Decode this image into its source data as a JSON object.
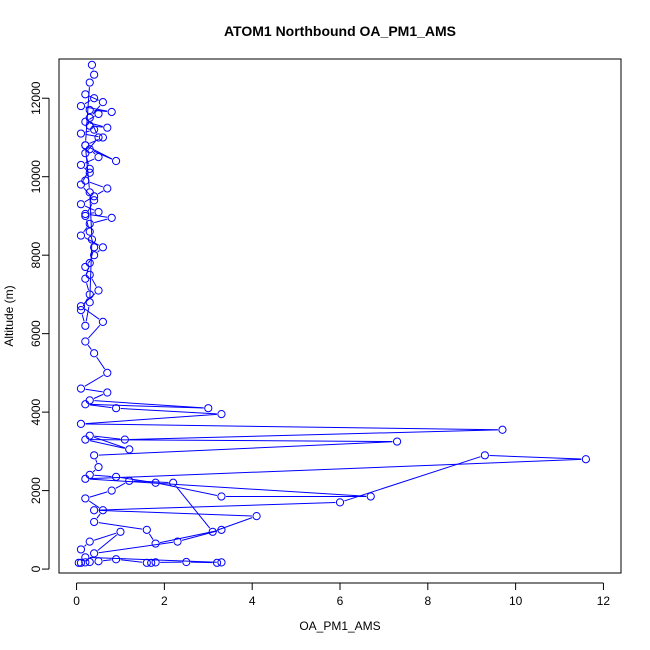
{
  "chart_data": {
    "type": "scatter",
    "title": "ATOM1 Northbound OA_PM1_AMS",
    "xlabel": "OA_PM1_AMS",
    "ylabel": "Altitude (m)",
    "xlim": [
      -0.4,
      12.4
    ],
    "ylim": [
      -100,
      13000
    ],
    "x_ticks": [
      0,
      2,
      4,
      6,
      8,
      10,
      12
    ],
    "y_ticks": [
      0,
      2000,
      4000,
      6000,
      8000,
      10000,
      12000
    ],
    "grid": false,
    "marker": "open-circle",
    "line": true,
    "color": "#0000ff",
    "series": [
      {
        "name": "",
        "x": [
          0.05,
          0.1,
          0.2,
          0.3,
          0.5,
          0.9,
          1.6,
          1.7,
          1.8,
          2.5,
          3.2,
          3.3,
          0.2,
          0.1,
          0.3,
          1.0,
          0.4,
          2.3,
          3.3,
          1.8,
          1.6,
          0.4,
          0.6,
          0.2,
          0.8,
          1.2,
          2.2,
          3.1,
          4.1,
          0.4,
          6.0,
          9.3,
          11.6,
          0.2,
          6.7,
          3.3,
          1.8,
          0.9,
          0.3,
          0.5,
          0.4,
          7.3,
          0.2,
          1.2,
          0.3,
          1.1,
          9.7,
          0.1,
          3.3,
          0.9,
          0.2,
          3.0,
          0.3,
          0.7,
          0.1,
          0.7,
          0.4,
          0.2,
          0.6,
          0.1,
          0.5,
          0.3,
          0.2,
          0.4,
          0.6,
          0.1,
          0.3,
          0.8,
          0.2,
          0.5,
          0.1,
          0.4,
          0.7,
          0.2,
          0.3,
          0.1,
          0.5,
          0.3,
          0.9,
          0.2,
          0.6,
          0.1,
          0.4,
          0.3,
          0.7,
          0.2,
          0.5,
          0.3,
          0.8,
          0.1,
          0.4,
          0.2,
          0.6,
          0.3,
          0.5,
          0.2,
          0.3,
          0.1,
          0.4,
          0.2,
          0.3,
          0.4,
          0.3,
          0.2,
          0.3,
          0.1,
          0.2,
          0.3,
          0.35,
          0.3,
          0.2,
          0.3,
          0.4,
          0.35
        ],
        "y": [
          160,
          160,
          170,
          180,
          200,
          250,
          160,
          160,
          170,
          180,
          160,
          170,
          300,
          500,
          700,
          950,
          400,
          700,
          1000,
          650,
          1000,
          1200,
          1500,
          1800,
          2000,
          2250,
          2200,
          950,
          1350,
          1500,
          1700,
          2900,
          2800,
          2300,
          1850,
          1850,
          2200,
          2350,
          2400,
          2600,
          2900,
          3250,
          3300,
          3050,
          3400,
          3300,
          3550,
          3700,
          3950,
          4100,
          4200,
          4100,
          4300,
          4500,
          4600,
          5000,
          5500,
          5800,
          6300,
          6700,
          7100,
          7500,
          7700,
          8000,
          8200,
          8500,
          8800,
          8950,
          9050,
          9100,
          9300,
          9500,
          9700,
          9900,
          10100,
          10300,
          10500,
          10700,
          10400,
          10800,
          11000,
          11100,
          11200,
          11300,
          11250,
          11400,
          11600,
          11700,
          11650,
          11800,
          12000,
          12100,
          11900,
          11500,
          11000,
          10600,
          10200,
          9800,
          9400,
          9000,
          8600,
          8200,
          7800,
          7400,
          7000,
          6600,
          6200,
          6800,
          8400,
          9600,
          10800,
          12400,
          12600,
          12850
        ]
      }
    ]
  }
}
